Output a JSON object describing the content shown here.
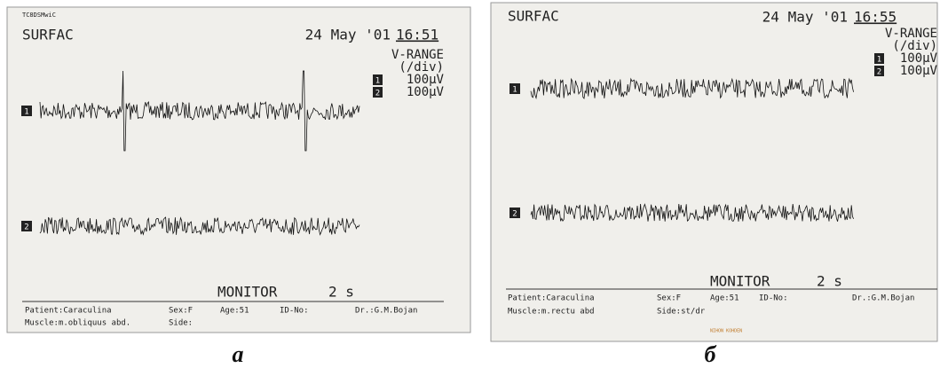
{
  "panels": [
    {
      "corner": "TC8DSMwiC",
      "program": "SURFAC",
      "date": "24 May '01",
      "time": "16:51",
      "range_title": "V-RANGE",
      "range_unit": "(/div)",
      "ranges": [
        {
          "channel": "1",
          "value": "100μV"
        },
        {
          "channel": "2",
          "value": "100μV"
        }
      ],
      "channels": [
        "1",
        "2"
      ],
      "mode": "MONITOR",
      "timebase": "2 s",
      "footer": [
        [
          "Patient:Caraculina",
          "Sex:F",
          "Age:51",
          "ID-No:",
          "Dr.:G.M.Bojan"
        ],
        [
          "Muscle:m.obliquus abd.",
          "Side:"
        ]
      ],
      "caption": "a"
    },
    {
      "program": "SURFAC",
      "date": "24 May '01",
      "time": "16:55",
      "range_title": "V-RANGE",
      "range_unit": "(/div)",
      "ranges": [
        {
          "channel": "1",
          "value": "100μV"
        },
        {
          "channel": "2",
          "value": "100μV"
        }
      ],
      "channels": [
        "1",
        "2"
      ],
      "mode": "MONITOR",
      "timebase": "2 s",
      "footer": [
        [
          "Patient:Caraculina",
          "Sex:F",
          "Age:51",
          "ID-No:",
          "Dr.:G.M.Bojan"
        ],
        [
          "Muscle:m.rectu abd",
          "Side:st/dr"
        ]
      ],
      "maker": "NIHON KOHDEN",
      "caption": "б"
    }
  ]
}
